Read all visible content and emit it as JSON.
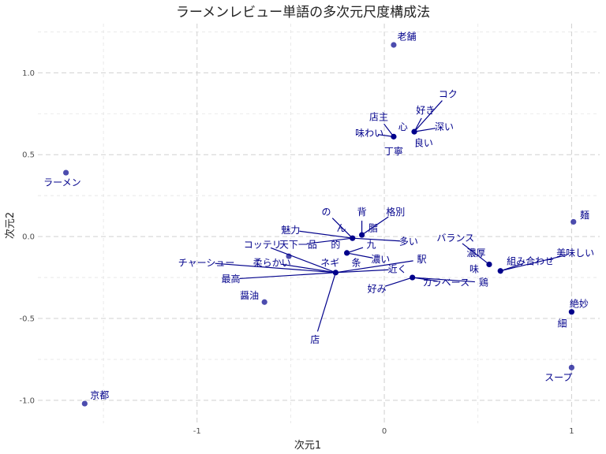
{
  "chart_data": {
    "type": "scatter",
    "title": "ラーメンレビュー単語の多次元尺度構成法",
    "xlabel": "次元1",
    "ylabel": "次元2",
    "xlim": [
      -1.85,
      1.15
    ],
    "ylim": [
      -1.14,
      1.3
    ],
    "x_ticks": [
      -1,
      0,
      1
    ],
    "x_tick_labels": [
      "-1",
      "0",
      "1"
    ],
    "y_ticks": [
      -1.0,
      -0.5,
      0.0,
      0.5,
      1.0
    ],
    "y_tick_labels": [
      "-1.0",
      "-0.5",
      "0.0",
      "0.5",
      "1.0"
    ],
    "grid": true,
    "colors": {
      "point": "#00008b",
      "label": "#00008b",
      "grid": "#d0d0d0"
    },
    "points": [
      {
        "x": 0.05,
        "y": 1.17,
        "opacity": 0.7
      },
      {
        "x": -1.7,
        "y": 0.39,
        "opacity": 0.7
      },
      {
        "x": 0.05,
        "y": 0.61,
        "opacity": 1.0
      },
      {
        "x": 0.16,
        "y": 0.64,
        "opacity": 1.0
      },
      {
        "x": -0.17,
        "y": -0.01,
        "opacity": 1.0
      },
      {
        "x": -0.12,
        "y": 0.01,
        "opacity": 1.0
      },
      {
        "x": -0.2,
        "y": -0.1,
        "opacity": 1.0
      },
      {
        "x": -0.51,
        "y": -0.12,
        "opacity": 0.7
      },
      {
        "x": -0.26,
        "y": -0.22,
        "opacity": 1.0
      },
      {
        "x": 0.15,
        "y": -0.25,
        "opacity": 1.0
      },
      {
        "x": 0.56,
        "y": -0.17,
        "opacity": 1.0
      },
      {
        "x": 0.62,
        "y": -0.21,
        "opacity": 1.0
      },
      {
        "x": -0.64,
        "y": -0.4,
        "opacity": 0.7
      },
      {
        "x": 1.01,
        "y": 0.09,
        "opacity": 0.7
      },
      {
        "x": 1.0,
        "y": -0.46,
        "opacity": 1.0
      },
      {
        "x": 1.0,
        "y": -0.8,
        "opacity": 0.7
      },
      {
        "x": -1.6,
        "y": -1.02,
        "opacity": 0.7
      }
    ],
    "labels": [
      {
        "text": "老舗",
        "x": 0.12,
        "y": 1.22,
        "anchor": {
          "x": 0.05,
          "y": 1.17
        }
      },
      {
        "text": "ラーメン",
        "x": -1.72,
        "y": 0.33,
        "anchor": {
          "x": -1.7,
          "y": 0.39
        }
      },
      {
        "text": "店主",
        "x": -0.03,
        "y": 0.73,
        "anchor": {
          "x": 0.05,
          "y": 0.61
        }
      },
      {
        "text": "味わい",
        "x": -0.08,
        "y": 0.63,
        "anchor": {
          "x": 0.05,
          "y": 0.61
        }
      },
      {
        "text": "丁寧",
        "x": 0.05,
        "y": 0.52,
        "anchor": {
          "x": 0.05,
          "y": 0.61
        }
      },
      {
        "text": "心",
        "x": 0.1,
        "y": 0.67,
        "anchor": {
          "x": 0.16,
          "y": 0.64
        }
      },
      {
        "text": "好き",
        "x": 0.22,
        "y": 0.77,
        "anchor": {
          "x": 0.16,
          "y": 0.64
        }
      },
      {
        "text": "コク",
        "x": 0.34,
        "y": 0.87,
        "anchor": {
          "x": 0.16,
          "y": 0.64
        }
      },
      {
        "text": "深い",
        "x": 0.32,
        "y": 0.67,
        "anchor": {
          "x": 0.16,
          "y": 0.64
        }
      },
      {
        "text": "良い",
        "x": 0.21,
        "y": 0.57,
        "anchor": {
          "x": 0.16,
          "y": 0.64
        }
      },
      {
        "text": "背",
        "x": -0.12,
        "y": 0.15,
        "anchor": {
          "x": -0.12,
          "y": 0.01
        }
      },
      {
        "text": "格別",
        "x": 0.06,
        "y": 0.15,
        "anchor": {
          "x": -0.12,
          "y": 0.01
        }
      },
      {
        "text": "の",
        "x": -0.31,
        "y": 0.15,
        "anchor": {
          "x": -0.17,
          "y": -0.01
        }
      },
      {
        "text": "ん",
        "x": -0.23,
        "y": 0.05,
        "anchor": {
          "x": -0.17,
          "y": -0.01
        }
      },
      {
        "text": "脂",
        "x": -0.06,
        "y": 0.05,
        "anchor": {
          "x": -0.12,
          "y": 0.01
        }
      },
      {
        "text": "魅力",
        "x": -0.5,
        "y": 0.04,
        "anchor": {
          "x": -0.17,
          "y": -0.01
        }
      },
      {
        "text": "多い",
        "x": 0.13,
        "y": -0.03,
        "anchor": {
          "x": -0.17,
          "y": -0.01
        }
      },
      {
        "text": "天下一品",
        "x": -0.46,
        "y": -0.05,
        "anchor": {
          "x": -0.17,
          "y": -0.01
        }
      },
      {
        "text": "的",
        "x": -0.26,
        "y": -0.05,
        "anchor": {
          "x": -0.17,
          "y": -0.01
        }
      },
      {
        "text": "コッテリ",
        "x": -0.65,
        "y": -0.05,
        "anchor": {
          "x": -0.26,
          "y": -0.22
        }
      },
      {
        "text": "九",
        "x": -0.07,
        "y": -0.05,
        "anchor": {
          "x": -0.2,
          "y": -0.1
        }
      },
      {
        "text": "チャーシュー",
        "x": -0.95,
        "y": -0.16,
        "anchor": {
          "x": -0.26,
          "y": -0.22
        }
      },
      {
        "text": "柔らかい",
        "x": -0.6,
        "y": -0.16,
        "anchor": {
          "x": -0.26,
          "y": -0.22
        }
      },
      {
        "text": "ネギ",
        "x": -0.29,
        "y": -0.16,
        "anchor": {
          "x": -0.26,
          "y": -0.22
        }
      },
      {
        "text": "条",
        "x": -0.15,
        "y": -0.16,
        "anchor": {
          "x": -0.2,
          "y": -0.1
        }
      },
      {
        "text": "濃い",
        "x": -0.02,
        "y": -0.14,
        "anchor": {
          "x": -0.2,
          "y": -0.1
        }
      },
      {
        "text": "駅",
        "x": 0.2,
        "y": -0.14,
        "anchor": {
          "x": -0.26,
          "y": -0.22
        }
      },
      {
        "text": "近く",
        "x": 0.07,
        "y": -0.2,
        "anchor": {
          "x": -0.26,
          "y": -0.22
        }
      },
      {
        "text": "最高",
        "x": -0.82,
        "y": -0.26,
        "anchor": {
          "x": -0.26,
          "y": -0.22
        }
      },
      {
        "text": "好み",
        "x": -0.04,
        "y": -0.32,
        "anchor": {
          "x": 0.15,
          "y": -0.25
        }
      },
      {
        "text": "カラベース",
        "x": 0.33,
        "y": -0.28,
        "anchor": {
          "x": 0.15,
          "y": -0.25
        }
      },
      {
        "text": "鶏",
        "x": 0.53,
        "y": -0.28,
        "anchor": {
          "x": 0.15,
          "y": -0.25
        }
      },
      {
        "text": "醤油",
        "x": -0.72,
        "y": -0.36,
        "anchor": {
          "x": -0.64,
          "y": -0.4
        }
      },
      {
        "text": "店",
        "x": -0.37,
        "y": -0.63,
        "anchor": {
          "x": -0.26,
          "y": -0.22
        }
      },
      {
        "text": "バランス",
        "x": 0.38,
        "y": -0.01,
        "anchor": {
          "x": 0.56,
          "y": -0.17
        }
      },
      {
        "text": "濃厚",
        "x": 0.49,
        "y": -0.1,
        "anchor": {
          "x": 0.56,
          "y": -0.17
        }
      },
      {
        "text": "味",
        "x": 0.48,
        "y": -0.2,
        "anchor": {
          "x": 0.56,
          "y": -0.17
        }
      },
      {
        "text": "組み合わせ",
        "x": 0.78,
        "y": -0.15,
        "anchor": {
          "x": 0.62,
          "y": -0.21
        }
      },
      {
        "text": "美味しい",
        "x": 1.02,
        "y": -0.1,
        "anchor": {
          "x": 0.62,
          "y": -0.21
        }
      },
      {
        "text": "麺",
        "x": 1.07,
        "y": 0.13,
        "anchor": {
          "x": 1.01,
          "y": 0.09
        }
      },
      {
        "text": "絶妙",
        "x": 1.04,
        "y": -0.41,
        "anchor": {
          "x": 1.0,
          "y": -0.46
        }
      },
      {
        "text": "細",
        "x": 0.95,
        "y": -0.53,
        "anchor": {
          "x": 1.0,
          "y": -0.46
        }
      },
      {
        "text": "スープ",
        "x": 0.93,
        "y": -0.86,
        "anchor": {
          "x": 1.0,
          "y": -0.8
        }
      },
      {
        "text": "京都",
        "x": -1.52,
        "y": -0.97,
        "anchor": {
          "x": -1.6,
          "y": -1.02
        }
      }
    ]
  }
}
